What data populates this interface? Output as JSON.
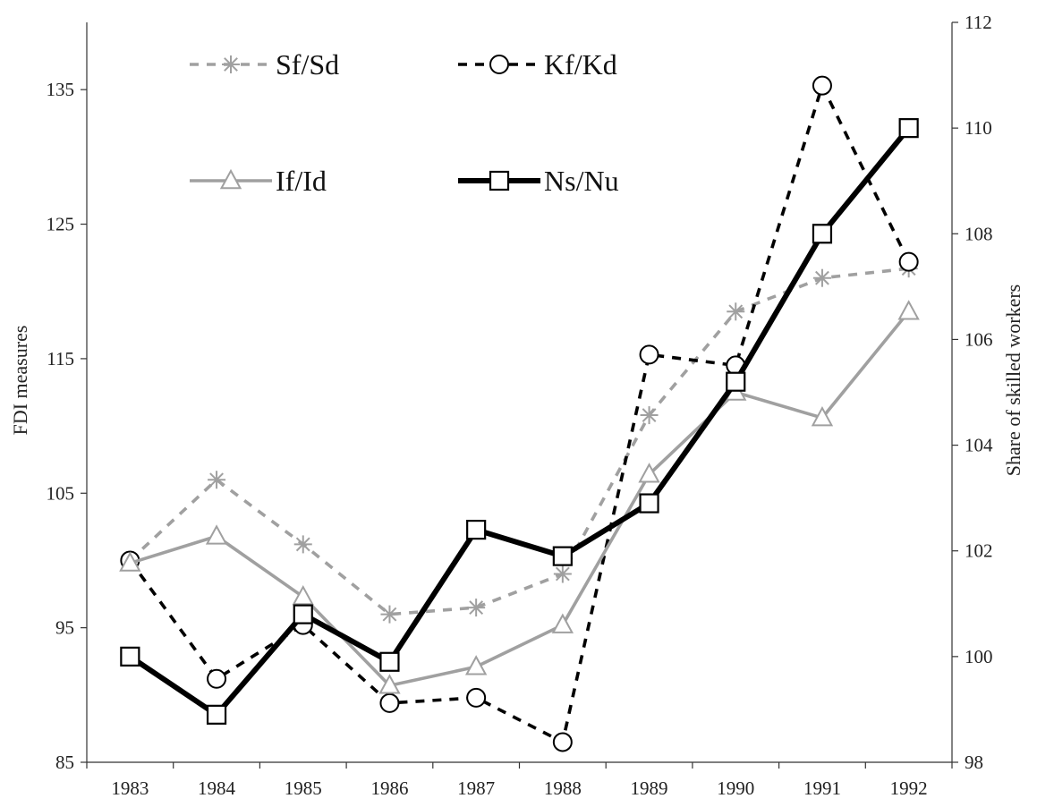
{
  "chart_data": {
    "type": "line",
    "x": [
      "1983",
      "1984",
      "1985",
      "1986",
      "1987",
      "1988",
      "1989",
      "1990",
      "1991",
      "1992"
    ],
    "ylabel_left": "FDI measures",
    "ylabel_right": "Share of skilled workers",
    "ylim_left": [
      85,
      140
    ],
    "yticks_left": [
      85,
      95,
      105,
      115,
      125,
      135
    ],
    "ylim_right": [
      98,
      112
    ],
    "yticks_right": [
      98,
      100,
      102,
      104,
      106,
      108,
      110,
      112
    ],
    "legend_position": "top-left",
    "series": [
      {
        "name": "Sf/Sd",
        "axis": "left",
        "color": "#a0a0a0",
        "dash": "dashed",
        "marker": "asterisk",
        "width": "medium",
        "values": [
          100.0,
          106.0,
          101.2,
          96.0,
          96.5,
          99.0,
          110.8,
          118.5,
          121.0,
          121.7
        ]
      },
      {
        "name": "Kf/Kd",
        "axis": "left",
        "color": "#000000",
        "dash": "dashed",
        "marker": "circle",
        "width": "medium",
        "values": [
          100.0,
          91.2,
          95.2,
          89.4,
          89.8,
          86.5,
          115.3,
          114.5,
          135.3,
          122.2
        ]
      },
      {
        "name": "If/Id",
        "axis": "left",
        "color": "#a0a0a0",
        "dash": "solid",
        "marker": "triangle",
        "width": "medium",
        "values": [
          99.8,
          101.8,
          97.3,
          90.7,
          92.1,
          95.2,
          106.4,
          112.5,
          110.6,
          118.5
        ]
      },
      {
        "name": "Ns/Nu",
        "axis": "right",
        "color": "#000000",
        "dash": "solid",
        "marker": "square",
        "width": "thick",
        "values": [
          100.0,
          98.9,
          100.8,
          99.9,
          102.4,
          101.9,
          102.9,
          105.2,
          108.0,
          110.0
        ]
      }
    ]
  }
}
